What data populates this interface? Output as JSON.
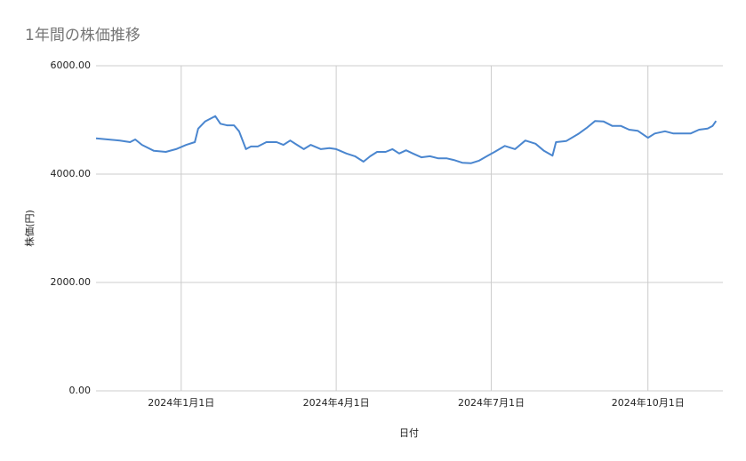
{
  "chart_data": {
    "type": "line",
    "title": "1年間の株価推移",
    "x_label": "日付",
    "y_label": "株価(円)",
    "x": [
      "2023-11-12",
      "2023-11-19",
      "2023-11-26",
      "2023-12-02",
      "2023-12-05",
      "2023-12-09",
      "2023-12-16",
      "2023-12-23",
      "2023-12-29",
      "2024-01-04",
      "2024-01-09",
      "2024-01-11",
      "2024-01-15",
      "2024-01-21",
      "2024-01-24",
      "2024-01-28",
      "2024-02-01",
      "2024-02-04",
      "2024-02-08",
      "2024-02-11",
      "2024-02-15",
      "2024-02-20",
      "2024-02-26",
      "2024-03-01",
      "2024-03-05",
      "2024-03-09",
      "2024-03-13",
      "2024-03-17",
      "2024-03-23",
      "2024-03-28",
      "2024-04-01",
      "2024-04-07",
      "2024-04-12",
      "2024-04-17",
      "2024-04-21",
      "2024-04-25",
      "2024-04-30",
      "2024-05-04",
      "2024-05-08",
      "2024-05-12",
      "2024-05-16",
      "2024-05-21",
      "2024-05-26",
      "2024-05-31",
      "2024-06-05",
      "2024-06-09",
      "2024-06-14",
      "2024-06-19",
      "2024-06-24",
      "2024-06-29",
      "2024-07-03",
      "2024-07-09",
      "2024-07-15",
      "2024-07-21",
      "2024-07-27",
      "2024-08-01",
      "2024-08-06",
      "2024-08-08",
      "2024-08-14",
      "2024-08-21",
      "2024-08-26",
      "2024-08-31",
      "2024-09-05",
      "2024-09-10",
      "2024-09-15",
      "2024-09-20",
      "2024-09-25",
      "2024-10-01",
      "2024-10-05",
      "2024-10-11",
      "2024-10-16",
      "2024-10-21",
      "2024-10-26",
      "2024-10-31",
      "2024-11-05",
      "2024-11-08",
      "2024-11-10"
    ],
    "series": [
      {
        "name": "株価",
        "color": "#4a86cf",
        "values": [
          4660,
          4640,
          4620,
          4590,
          4640,
          4540,
          4430,
          4410,
          4460,
          4540,
          4590,
          4840,
          4970,
          5070,
          4930,
          4900,
          4900,
          4790,
          4460,
          4510,
          4510,
          4590,
          4590,
          4540,
          4620,
          4540,
          4460,
          4540,
          4460,
          4480,
          4460,
          4380,
          4330,
          4230,
          4330,
          4410,
          4410,
          4460,
          4380,
          4440,
          4380,
          4310,
          4330,
          4290,
          4290,
          4260,
          4210,
          4200,
          4250,
          4340,
          4410,
          4520,
          4460,
          4620,
          4560,
          4430,
          4340,
          4590,
          4610,
          4740,
          4850,
          4980,
          4970,
          4890,
          4890,
          4820,
          4800,
          4670,
          4750,
          4790,
          4750,
          4750,
          4750,
          4820,
          4840,
          4890,
          4980
        ]
      }
    ],
    "xlim": [
      "2023-11-12",
      "2024-11-14"
    ],
    "xticks": [
      {
        "value": "2024-01-01",
        "label": "2024年1月1日"
      },
      {
        "value": "2024-04-01",
        "label": "2024年4月1日"
      },
      {
        "value": "2024-07-01",
        "label": "2024年7月1日"
      },
      {
        "value": "2024-10-01",
        "label": "2024年10月1日"
      }
    ],
    "ylim": [
      0,
      6000
    ],
    "yticks": [
      {
        "value": 0,
        "label": "0.00"
      },
      {
        "value": 2000,
        "label": "2000.00"
      },
      {
        "value": 4000,
        "label": "4000.00"
      },
      {
        "value": 6000,
        "label": "6000.00"
      }
    ],
    "grid": true
  }
}
